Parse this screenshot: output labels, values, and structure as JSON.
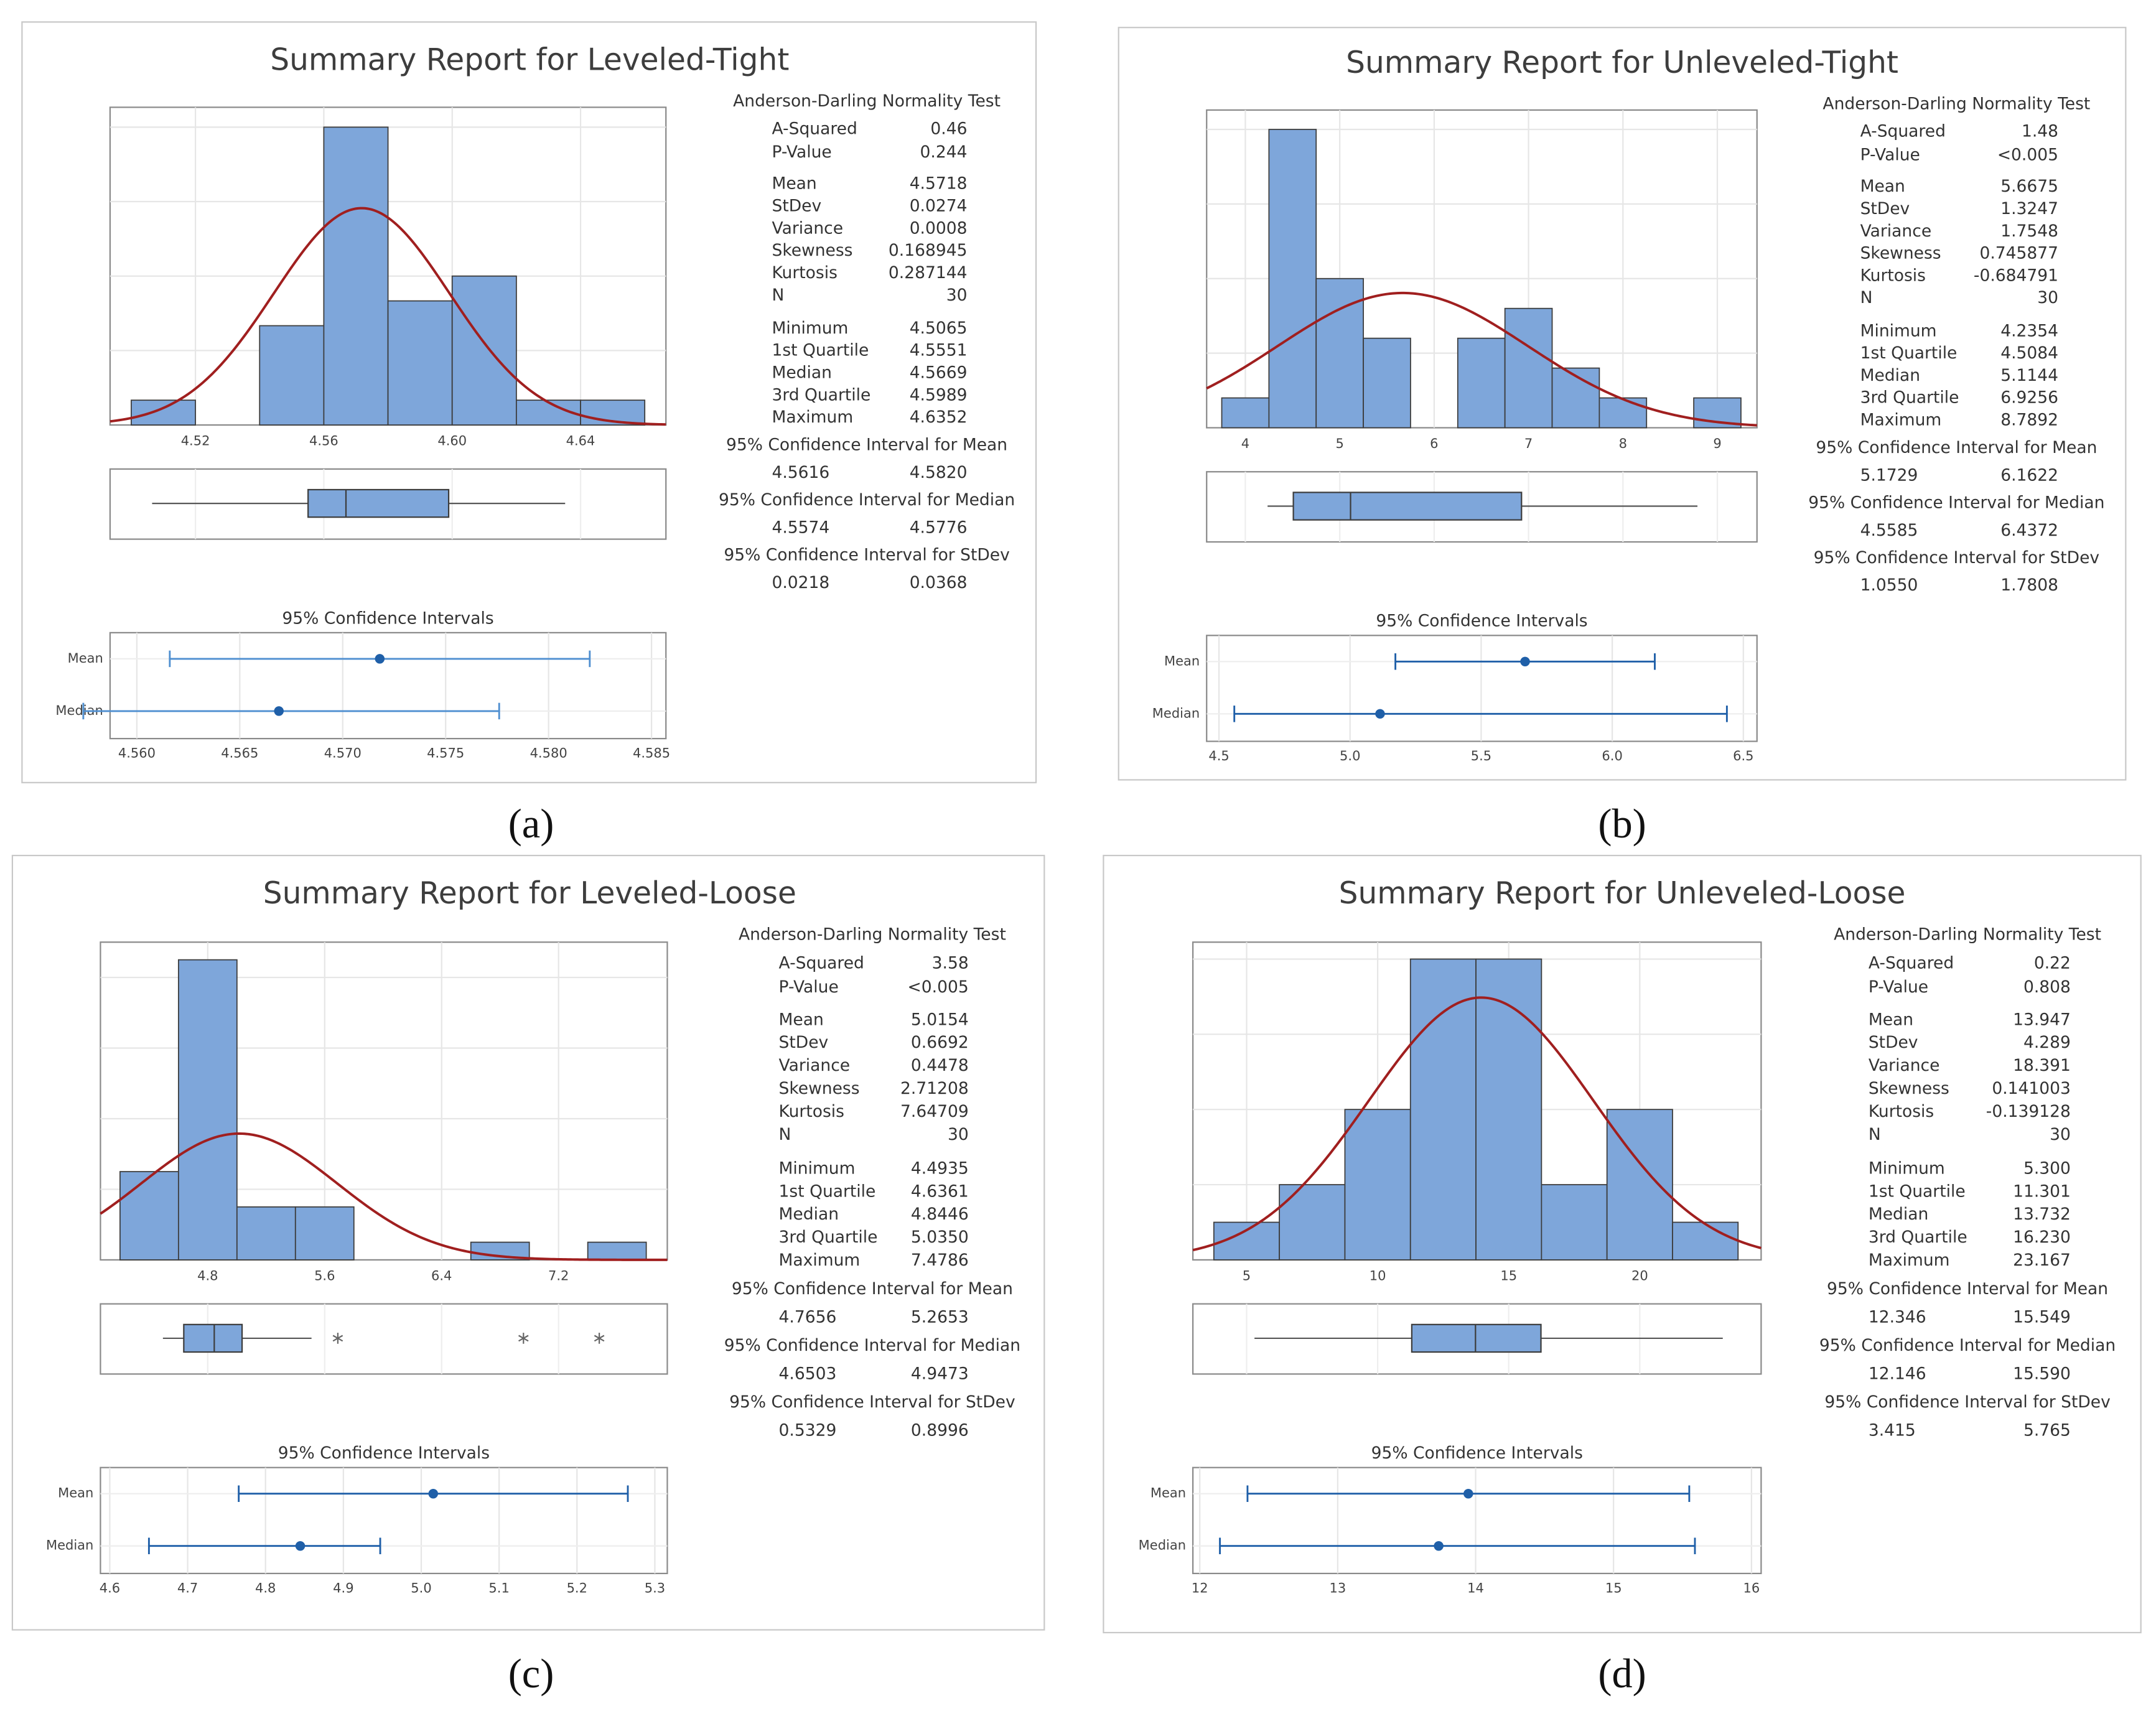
{
  "chart_data": [
    {
      "type": "summary-report",
      "title": "Summary Report for Leveled-Tight",
      "caption": "(a)",
      "histogram": {
        "bins": [
          4.5,
          4.52,
          4.54,
          4.56,
          4.58,
          4.6,
          4.62,
          4.64,
          4.66
        ],
        "counts": [
          1,
          0,
          4,
          12,
          5,
          6,
          1,
          1
        ],
        "xlim": [
          4.4934,
          4.6666
        ],
        "xticks": [
          4.52,
          4.56,
          {
            "value": 4.6,
            "label": "4.60"
          },
          4.64
        ],
        "ylim": [
          0,
          12.8
        ],
        "yticks": [
          3,
          6,
          9,
          12
        ],
        "color": "#7ea6da",
        "curve_color": "#a01f1f"
      },
      "normality_test": {
        "title": "Anderson-Darling Normality Test",
        "rows": [
          {
            "name": "A-Squared",
            "value": 0.46
          },
          {
            "name": "P-Value",
            "value": 0.244
          }
        ]
      },
      "statistics": [
        {
          "name": "Mean",
          "value": 4.5718
        },
        {
          "name": "StDev",
          "value": 0.0274
        },
        {
          "name": "Variance",
          "value": 0.0008
        },
        {
          "name": "Skewness",
          "value": 0.168945
        },
        {
          "name": "Kurtosis",
          "value": 0.287144
        },
        {
          "name": "N",
          "value": 30
        }
      ],
      "quantiles": [
        {
          "name": "Minimum",
          "value": 4.5065
        },
        {
          "name": "1st Quartile",
          "value": 4.5551
        },
        {
          "name": "Median",
          "value": 4.5669
        },
        {
          "name": "3rd Quartile",
          "value": 4.5989
        },
        {
          "name": "Maximum",
          "value": 4.6352
        }
      ],
      "intervals": [
        {
          "title": "95% Confidence Interval for Mean",
          "values": [
            4.5616,
            {
              "value": 4.582,
              "label": "4.5820"
            }
          ]
        },
        {
          "title": "95% Confidence Interval for Median",
          "values": [
            4.5574,
            4.5776
          ]
        },
        {
          "title": "95% Confidence Interval for StDev",
          "values": [
            0.0218,
            0.0368
          ]
        }
      ],
      "ci_plot": {
        "title": "95% Confidence Intervals",
        "categories": [
          "Mean",
          "Median"
        ],
        "xlim": [
          4.5587,
          4.5857
        ],
        "xticks": [
          {
            "value": 4.56,
            "label": "4.560"
          },
          4.565,
          {
            "value": 4.57,
            "label": "4.570"
          },
          4.575,
          {
            "value": 4.58,
            "label": "4.580"
          },
          4.585
        ],
        "color": "#4f8fd0"
      }
    },
    {
      "type": "summary-report",
      "title": "Summary Report for Unleveled-Tight",
      "caption": "(b)",
      "histogram": {
        "bins": [
          3.75,
          4.25,
          4.75,
          5.25,
          5.75,
          6.25,
          6.75,
          7.25,
          7.75,
          8.25,
          8.75,
          9.25
        ],
        "counts": [
          1,
          10,
          5,
          3,
          0,
          3,
          4,
          2,
          1,
          0,
          1
        ],
        "xlim": [
          3.59,
          9.42
        ],
        "xticks": [
          4,
          5,
          6,
          7,
          8,
          9
        ],
        "ylim": [
          0,
          10.65
        ],
        "yticks": [
          2.5,
          5,
          7.5,
          10
        ],
        "color": "#7ea6da",
        "curve_color": "#a01f1f"
      },
      "normality_test": {
        "title": "Anderson-Darling Normality Test",
        "rows": [
          {
            "name": "A-Squared",
            "value": 1.48
          },
          {
            "name": "P-Value",
            "value": {
              "value": 0.005,
              "label": "<0.005"
            }
          }
        ]
      },
      "statistics": [
        {
          "name": "Mean",
          "value": 5.6675
        },
        {
          "name": "StDev",
          "value": 1.3247
        },
        {
          "name": "Variance",
          "value": 1.7548
        },
        {
          "name": "Skewness",
          "value": 0.745877
        },
        {
          "name": "Kurtosis",
          "value": -0.684791
        },
        {
          "name": "N",
          "value": 30
        }
      ],
      "quantiles": [
        {
          "name": "Minimum",
          "value": 4.2354
        },
        {
          "name": "1st Quartile",
          "value": 4.5084
        },
        {
          "name": "Median",
          "value": 5.1144
        },
        {
          "name": "3rd Quartile",
          "value": 6.9256
        },
        {
          "name": "Maximum",
          "value": 8.7892
        }
      ],
      "intervals": [
        {
          "title": "95% Confidence Interval for Mean",
          "values": [
            5.1729,
            6.1622
          ]
        },
        {
          "title": "95% Confidence Interval for Median",
          "values": [
            4.5585,
            6.4372
          ]
        },
        {
          "title": "95% Confidence Interval for StDev",
          "values": [
            {
              "value": 1.055,
              "label": "1.0550"
            },
            1.7808
          ]
        }
      ],
      "ci_plot": {
        "title": "95% Confidence Intervals",
        "categories": [
          "Mean",
          "Median"
        ],
        "xlim": [
          4.453,
          6.552
        ],
        "xticks": [
          4.5,
          {
            "value": 5,
            "label": "5.0"
          },
          5.5,
          {
            "value": 6,
            "label": "6.0"
          },
          6.5
        ],
        "color": "#1f5fa8"
      }
    },
    {
      "type": "summary-report",
      "title": "Summary Report for Leveled-Loose",
      "caption": "(c)",
      "histogram": {
        "bins": [
          4.2,
          4.6,
          5,
          5.4,
          5.8,
          6.2,
          6.6,
          7,
          7.4,
          7.8
        ],
        "counts": [
          5,
          17,
          3,
          3,
          0,
          0,
          1,
          0,
          1
        ],
        "xlim": [
          4.066,
          7.944
        ],
        "xticks": [
          4.8,
          5.6,
          6.4,
          7.2
        ],
        "ylim": [
          0,
          18
        ],
        "yticks": [
          4,
          8,
          12,
          16
        ],
        "color": "#7ea6da",
        "curve_color": "#a01f1f"
      },
      "normality_test": {
        "title": "Anderson-Darling Normality Test",
        "rows": [
          {
            "name": "A-Squared",
            "value": 3.58
          },
          {
            "name": "P-Value",
            "value": {
              "value": 0.005,
              "label": "<0.005"
            }
          }
        ]
      },
      "statistics": [
        {
          "name": "Mean",
          "value": 5.0154
        },
        {
          "name": "StDev",
          "value": 0.6692
        },
        {
          "name": "Variance",
          "value": 0.4478
        },
        {
          "name": "Skewness",
          "value": 2.71208
        },
        {
          "name": "Kurtosis",
          "value": 7.64709
        },
        {
          "name": "N",
          "value": 30
        }
      ],
      "quantiles": [
        {
          "name": "Minimum",
          "value": 4.4935
        },
        {
          "name": "1st Quartile",
          "value": 4.6361
        },
        {
          "name": "Median",
          "value": 4.8446
        },
        {
          "name": "3rd Quartile",
          "value": {
            "value": 5.035,
            "label": "5.0350"
          }
        },
        {
          "name": "Maximum",
          "value": 7.4786
        }
      ],
      "intervals": [
        {
          "title": "95% Confidence Interval for Mean",
          "values": [
            4.7656,
            5.2653
          ]
        },
        {
          "title": "95% Confidence Interval for Median",
          "values": [
            4.6503,
            4.9473
          ]
        },
        {
          "title": "95% Confidence Interval for StDev",
          "values": [
            0.5329,
            0.8996
          ]
        }
      ],
      "boxplot": {
        "upper_whisker": 5.51,
        "outliers": [
          5.69,
          6.96,
          7.4786
        ]
      },
      "ci_plot": {
        "title": "95% Confidence Intervals",
        "categories": [
          "Mean",
          "Median"
        ],
        "xlim": [
          4.588,
          5.316
        ],
        "xticks": [
          4.6,
          4.7,
          4.8,
          4.9,
          {
            "value": 5,
            "label": "5.0"
          },
          5.1,
          5.2,
          5.3
        ],
        "color": "#1f5fa8"
      }
    },
    {
      "type": "summary-report",
      "title": "Summary Report for Unleveled-Loose",
      "caption": "(d)",
      "histogram": {
        "bins": [
          3.75,
          6.25,
          8.75,
          11.25,
          13.75,
          16.25,
          18.75,
          21.25,
          23.75
        ],
        "counts": [
          1,
          2,
          4,
          8,
          8,
          2,
          4,
          1
        ],
        "xlim": [
          2.95,
          24.63
        ],
        "xticks": [
          5,
          10,
          15,
          20
        ],
        "ylim": [
          0,
          8.45
        ],
        "yticks": [
          2,
          4,
          6,
          8
        ],
        "color": "#7ea6da",
        "curve_color": "#a01f1f"
      },
      "normality_test": {
        "title": "Anderson-Darling Normality Test",
        "rows": [
          {
            "name": "A-Squared",
            "value": 0.22
          },
          {
            "name": "P-Value",
            "value": 0.808
          }
        ]
      },
      "statistics": [
        {
          "name": "Mean",
          "value": 13.947
        },
        {
          "name": "StDev",
          "value": 4.289
        },
        {
          "name": "Variance",
          "value": 18.391
        },
        {
          "name": "Skewness",
          "value": 0.141003
        },
        {
          "name": "Kurtosis",
          "value": -0.139128
        },
        {
          "name": "N",
          "value": 30
        }
      ],
      "quantiles": [
        {
          "name": "Minimum",
          "value": {
            "value": 5.3,
            "label": "5.300"
          }
        },
        {
          "name": "1st Quartile",
          "value": 11.301
        },
        {
          "name": "Median",
          "value": 13.732
        },
        {
          "name": "3rd Quartile",
          "value": {
            "value": 16.23,
            "label": "16.230"
          }
        },
        {
          "name": "Maximum",
          "value": 23.167
        }
      ],
      "intervals": [
        {
          "title": "95% Confidence Interval for Mean",
          "values": [
            12.346,
            15.549
          ]
        },
        {
          "title": "95% Confidence Interval for Median",
          "values": [
            12.146,
            {
              "value": 15.59,
              "label": "15.590"
            }
          ]
        },
        {
          "title": "95% Confidence Interval for StDev",
          "values": [
            3.415,
            5.765
          ]
        }
      ],
      "ci_plot": {
        "title": "95% Confidence Intervals",
        "categories": [
          "Mean",
          "Median"
        ],
        "xlim": [
          11.95,
          16.07
        ],
        "xticks": [
          12,
          13,
          14,
          15,
          16
        ],
        "color": "#1f5fa8"
      }
    }
  ]
}
